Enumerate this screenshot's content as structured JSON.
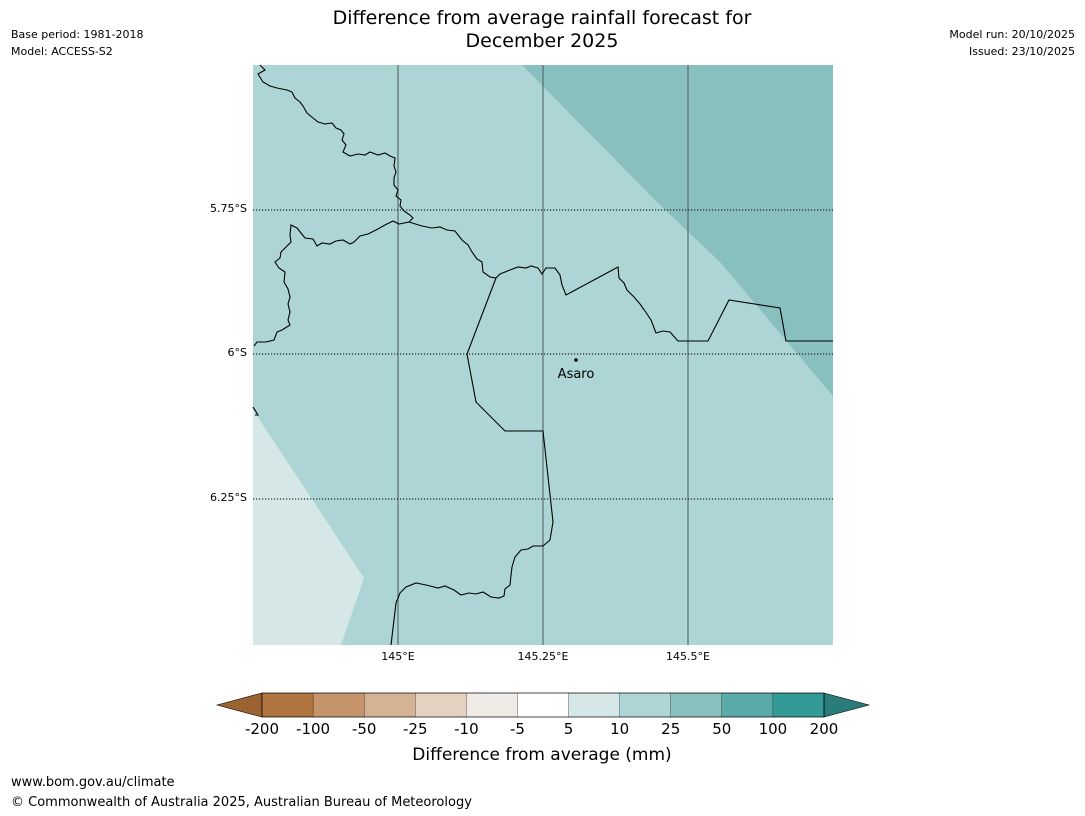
{
  "header": {
    "title_line1": "Difference from average rainfall forecast for",
    "title_line2": "December 2025",
    "base_period": "Base period: 1981-2018",
    "model": "Model: ACCESS-S2",
    "model_run": "Model run: 20/10/2025",
    "issued": "Issued: 23/10/2025"
  },
  "map": {
    "place": "Asaro",
    "lat_labels": [
      "5.75°S",
      "6°S",
      "6.25°S"
    ],
    "lon_labels": [
      "145°E",
      "145.25°E",
      "145.5°E"
    ],
    "colors": {
      "band_5_10": "#d5e8e7",
      "band_10_25": "#aed5d5",
      "band_25_50": "#87c0bf",
      "border": "#000000",
      "meridian": "#5a6e6e"
    }
  },
  "legend": {
    "title": "Difference from average (mm)",
    "labels": [
      "-200",
      "-100",
      "-50",
      "-25",
      "-10",
      "-5",
      "5",
      "10",
      "25",
      "50",
      "100",
      "200"
    ],
    "colors": [
      "#9c6332",
      "#b0743e",
      "#c5946a",
      "#d4b394",
      "#e5d1bf",
      "#efebe6",
      "#ffffff",
      "#d5e8e7",
      "#aed5d5",
      "#87c0bf",
      "#5aaaa9",
      "#339a97",
      "#2a7c7a"
    ]
  },
  "footer": {
    "url": "www.bom.gov.au/climate",
    "copyright": "© Commonwealth of Australia 2025, Australian Bureau of Meteorology"
  }
}
